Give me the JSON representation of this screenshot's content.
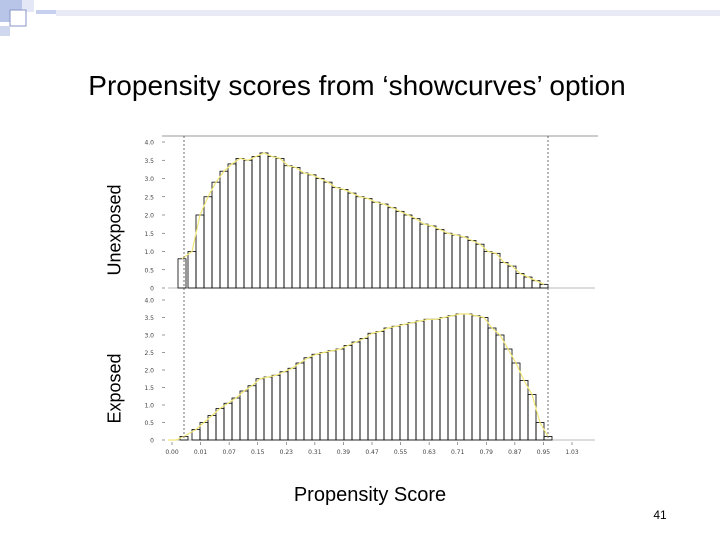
{
  "slide": {
    "title": "Propensity scores from ‘showcurves’ option",
    "page_number": "41"
  },
  "chart_data": {
    "type": "bar",
    "title": "",
    "xlabel": "Propensity Score",
    "x_ticks": [
      "0.00",
      "0.01",
      "0.07",
      "0.15",
      "0.23",
      "0.31",
      "0.39",
      "0.47",
      "0.55",
      "0.63",
      "0.71",
      "0.79",
      "0.87",
      "0.95",
      "1.03"
    ],
    "y_ticks": [
      "0",
      "0.5",
      "1.0",
      "1.5",
      "2.0",
      "2.5",
      "3.0",
      "3.5",
      "4.0"
    ],
    "ylim": [
      0,
      4.0
    ],
    "xlim": [
      0.0,
      1.03
    ],
    "reference_lines_x": [
      0.04,
      0.95
    ],
    "curve_color": "#f2e87a",
    "panels": [
      {
        "name": "Unexposed",
        "x": [
          0.035,
          0.06,
          0.08,
          0.1,
          0.12,
          0.14,
          0.16,
          0.18,
          0.2,
          0.22,
          0.24,
          0.26,
          0.28,
          0.3,
          0.32,
          0.34,
          0.36,
          0.38,
          0.4,
          0.42,
          0.44,
          0.46,
          0.48,
          0.5,
          0.52,
          0.54,
          0.56,
          0.58,
          0.6,
          0.62,
          0.64,
          0.66,
          0.68,
          0.7,
          0.72,
          0.74,
          0.76,
          0.78,
          0.8,
          0.82,
          0.84,
          0.86,
          0.88,
          0.9,
          0.92,
          0.94
        ],
        "values": [
          0.8,
          1.0,
          2.0,
          2.5,
          2.9,
          3.2,
          3.4,
          3.55,
          3.5,
          3.6,
          3.7,
          3.6,
          3.55,
          3.35,
          3.3,
          3.15,
          3.1,
          3.0,
          2.9,
          2.75,
          2.7,
          2.6,
          2.5,
          2.45,
          2.35,
          2.3,
          2.2,
          2.1,
          2.0,
          1.9,
          1.75,
          1.7,
          1.6,
          1.5,
          1.45,
          1.4,
          1.3,
          1.2,
          1.0,
          0.95,
          0.7,
          0.6,
          0.4,
          0.3,
          0.2,
          0.1
        ]
      },
      {
        "name": "Exposed",
        "x": [
          0.0,
          0.02,
          0.04,
          0.07,
          0.09,
          0.11,
          0.13,
          0.15,
          0.17,
          0.19,
          0.21,
          0.23,
          0.25,
          0.27,
          0.29,
          0.31,
          0.33,
          0.35,
          0.37,
          0.39,
          0.41,
          0.43,
          0.45,
          0.47,
          0.49,
          0.51,
          0.53,
          0.55,
          0.57,
          0.59,
          0.61,
          0.63,
          0.65,
          0.67,
          0.69,
          0.71,
          0.73,
          0.75,
          0.77,
          0.79,
          0.81,
          0.83,
          0.85,
          0.87,
          0.89,
          0.91,
          0.93,
          0.95
        ],
        "values": [
          0.0,
          0.0,
          0.1,
          0.3,
          0.5,
          0.7,
          0.9,
          1.05,
          1.2,
          1.4,
          1.55,
          1.75,
          1.8,
          1.85,
          1.95,
          2.05,
          2.2,
          2.35,
          2.45,
          2.5,
          2.55,
          2.6,
          2.7,
          2.8,
          2.9,
          3.05,
          3.1,
          3.2,
          3.25,
          3.3,
          3.35,
          3.4,
          3.45,
          3.45,
          3.5,
          3.55,
          3.6,
          3.6,
          3.55,
          3.5,
          3.2,
          3.0,
          2.6,
          2.2,
          1.7,
          1.3,
          0.5,
          0.1
        ]
      }
    ]
  }
}
